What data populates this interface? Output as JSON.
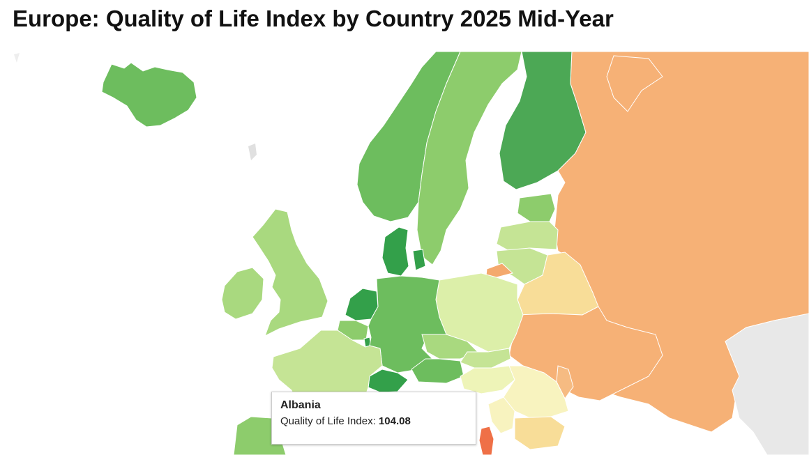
{
  "title": "Europe: Quality of Life Index by Country 2025 Mid-Year",
  "colors": {
    "background": "#ffffff",
    "no_data": "#e8e8e8",
    "very_high": "#33a04a",
    "high": "#4ca855",
    "upper": "#6dbd5e",
    "mid_high": "#8dcc6c",
    "mid": "#a9d97f",
    "mid_low": "#c5e495",
    "low_mid": "#dcefa9",
    "low": "#eef4b8",
    "lower": "#f8f3bf",
    "pale_orange": "#f8dd98",
    "orange_light": "#f6bb82",
    "orange": "#f4a96d",
    "red_orange": "#ef7047"
  },
  "map": {
    "regions": [
      {
        "name": "Iceland",
        "icon": "country-shape",
        "color": "#6dbd5e"
      },
      {
        "name": "Norway",
        "icon": "country-shape",
        "color": "#6dbd5e"
      },
      {
        "name": "Sweden",
        "icon": "country-shape",
        "color": "#8dcc6c"
      },
      {
        "name": "Finland",
        "icon": "country-shape",
        "color": "#4ca855"
      },
      {
        "name": "Russia",
        "icon": "country-shape",
        "color": "#f6b176"
      },
      {
        "name": "Estonia",
        "icon": "country-shape",
        "color": "#8dcc6c"
      },
      {
        "name": "Latvia",
        "icon": "country-shape",
        "color": "#c5e495"
      },
      {
        "name": "Lithuania",
        "icon": "country-shape",
        "color": "#c5e495"
      },
      {
        "name": "Kaliningrad",
        "icon": "country-shape",
        "color": "#f4a96d"
      },
      {
        "name": "Belarus",
        "icon": "country-shape",
        "color": "#f8dd98"
      },
      {
        "name": "Ukraine",
        "icon": "country-shape",
        "color": "#f6b176"
      },
      {
        "name": "Moldova",
        "icon": "country-shape",
        "color": "#f6bb82"
      },
      {
        "name": "Poland",
        "icon": "country-shape",
        "color": "#dcefa9"
      },
      {
        "name": "Denmark",
        "icon": "country-shape",
        "color": "#33a04a"
      },
      {
        "name": "Netherlands",
        "icon": "country-shape",
        "color": "#33a04a"
      },
      {
        "name": "Belgium",
        "icon": "country-shape",
        "color": "#8dcc6c"
      },
      {
        "name": "Luxembourg",
        "icon": "country-shape",
        "color": "#33a04a"
      },
      {
        "name": "Germany",
        "icon": "country-shape",
        "color": "#6dbd5e"
      },
      {
        "name": "Czechia",
        "icon": "country-shape",
        "color": "#a9d97f"
      },
      {
        "name": "Slovakia",
        "icon": "country-shape",
        "color": "#c5e495"
      },
      {
        "name": "Austria",
        "icon": "country-shape",
        "color": "#6dbd5e"
      },
      {
        "name": "Switzerland",
        "icon": "country-shape",
        "color": "#33a04a"
      },
      {
        "name": "France",
        "icon": "country-shape",
        "color": "#c5e495"
      },
      {
        "name": "United Kingdom",
        "icon": "country-shape",
        "color": "#a9d97f"
      },
      {
        "name": "Ireland",
        "icon": "country-shape",
        "color": "#a9d97f"
      },
      {
        "name": "Hungary",
        "icon": "country-shape",
        "color": "#eef4b8"
      },
      {
        "name": "Romania",
        "icon": "country-shape",
        "color": "#f8f3bf"
      },
      {
        "name": "Bulgaria",
        "icon": "country-shape",
        "color": "#f8f3bf"
      },
      {
        "name": "Serbia",
        "icon": "country-shape",
        "color": "#f8dd98"
      },
      {
        "name": "Albania",
        "icon": "country-shape",
        "color": "#ef7047"
      },
      {
        "name": "Spain",
        "icon": "country-shape",
        "color": "#8dcc6c"
      },
      {
        "name": "Turkey",
        "icon": "country-shape",
        "color": "#e8e8e8"
      }
    ]
  },
  "tooltip": {
    "country": "Albania",
    "metric_label": "Quality of Life Index:",
    "value": "104.08"
  }
}
